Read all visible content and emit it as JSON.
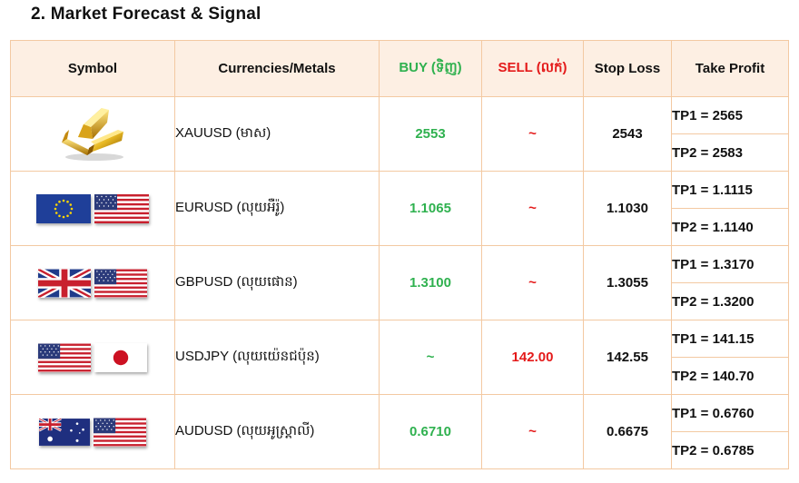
{
  "section_title": "2.  Market Forecast & Signal",
  "columns": {
    "symbol": "Symbol",
    "currencies": "Currencies/Metals",
    "buy": "BUY (ទិញ)",
    "sell": "SELL (លក់)",
    "stop_loss": "Stop Loss",
    "take_profit": "Take Profit"
  },
  "colors": {
    "buy": "#2fb14f",
    "sell": "#e41a1a",
    "border": "#f3c9a2",
    "header_bg": "#fdefe3"
  },
  "rows": [
    {
      "icon": "gold-bars-icon",
      "name": "XAUUSD (មាស)",
      "buy": "2553",
      "sell": "~",
      "stop_loss": "2543",
      "tp1": "TP1 = 2565",
      "tp2": "TP2 = 2583"
    },
    {
      "icon": "eu-us-flags-icon",
      "name": "EURUSD (លុយអឺរ៉ូ)",
      "buy": "1.1065",
      "sell": "~",
      "stop_loss": "1.1030",
      "tp1": "TP1 = 1.1115",
      "tp2": "TP2 = 1.1140"
    },
    {
      "icon": "uk-us-flags-icon",
      "name": "GBPUSD (លុយផោន)",
      "buy": "1.3100",
      "sell": "~",
      "stop_loss": "1.3055",
      "tp1": "TP1 = 1.3170",
      "tp2": "TP2 = 1.3200"
    },
    {
      "icon": "us-jp-flags-icon",
      "name": "USDJPY (លុយយ៉េនជប៉ុន)",
      "buy": "~",
      "sell": "142.00",
      "stop_loss": "142.55",
      "tp1": "TP1 = 141.15",
      "tp2": "TP2 = 140.70"
    },
    {
      "icon": "au-us-flags-icon",
      "name": "AUDUSD (លុយអូស្ត្រាលី)",
      "buy": "0.6710",
      "sell": "~",
      "stop_loss": "0.6675",
      "tp1": "TP1 = 0.6760",
      "tp2": "TP2 = 0.6785"
    }
  ]
}
